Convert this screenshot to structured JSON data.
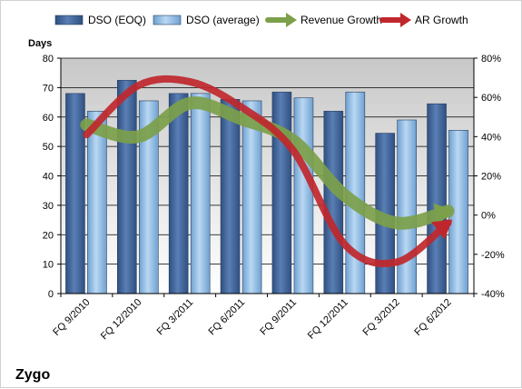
{
  "chart_data": {
    "type": "bar",
    "company": "Zygo",
    "ylabel": "Days",
    "categories": [
      "FQ 9/2010",
      "FQ 12/2010",
      "FQ 3/2011",
      "FQ 6/2011",
      "FQ 9/2011",
      "FQ 12/2011",
      "FQ 3/2012",
      "FQ 6/2012"
    ],
    "ylim": [
      0,
      80
    ],
    "yticks": [
      0,
      10,
      20,
      30,
      40,
      50,
      60,
      70,
      80
    ],
    "y2lim": [
      -40,
      80
    ],
    "y2ticks": [
      "-40%",
      "-20%",
      "0%",
      "20%",
      "40%",
      "60%",
      "80%"
    ],
    "y2tick_values": [
      -40,
      -20,
      0,
      20,
      40,
      60,
      80
    ],
    "grid": true,
    "legend_position": "top",
    "series": [
      {
        "name": "DSO (EOQ)",
        "kind": "bar",
        "color": "#4a6fa5",
        "values": [
          68,
          72.5,
          68,
          66,
          68.5,
          62,
          54.5,
          64.5
        ]
      },
      {
        "name": "DSO (average)",
        "kind": "bar",
        "color": "#9ec6ea",
        "values": [
          62,
          65.5,
          68,
          65.5,
          66.5,
          68.5,
          59,
          55.5
        ]
      },
      {
        "name": "Revenue Growth",
        "kind": "line",
        "axis": "right",
        "color": "#7ca04a",
        "values": [
          46,
          40,
          57,
          49,
          38,
          10,
          -4,
          2
        ]
      },
      {
        "name": "AR Growth",
        "kind": "line",
        "axis": "right",
        "color": "#c0272d",
        "values": [
          41,
          66,
          68,
          55,
          33,
          -15,
          -24,
          -4
        ]
      }
    ]
  }
}
